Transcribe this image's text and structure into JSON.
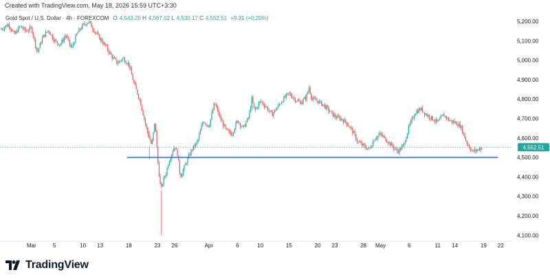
{
  "header": {
    "created_text": "Created with TradingView.com, May 18, 2026 15:59 UTC+3:30"
  },
  "legend": {
    "symbol": "Gold Spot / U.S. Dollar · 4h · FOREXCOM",
    "open_label": "O",
    "open": "4,543.20",
    "high_label": "H",
    "high": "4,567.02",
    "low_label": "L",
    "low": "4,530.17",
    "close_label": "C",
    "close": "4,552.51",
    "change": "+9.31 (+0.20%)"
  },
  "brand": {
    "name": "TradingView"
  },
  "colors": {
    "up": "#26a69a",
    "down": "#ef5350",
    "support_line": "#2962ff",
    "price_tag": "#26a69a"
  },
  "chart_data": {
    "type": "candlestick",
    "symbol": "XAUUSD",
    "timeframe": "4h",
    "current_price": 4552.51,
    "current_price_label": "4,552.51",
    "support_level": 4500,
    "y_ticks": [
      {
        "value": 4100,
        "label": "4,100.00"
      },
      {
        "value": 4200,
        "label": "4,200.00"
      },
      {
        "value": 4300,
        "label": "4,300.00"
      },
      {
        "value": 4400,
        "label": "4,400.00"
      },
      {
        "value": 4500,
        "label": "4,500.00"
      },
      {
        "value": 4600,
        "label": "4,600.00"
      },
      {
        "value": 4700,
        "label": "4,700.00"
      },
      {
        "value": 4800,
        "label": "4,800.00"
      },
      {
        "value": 4900,
        "label": "4,900.00"
      },
      {
        "value": 5000,
        "label": "5,000.00"
      },
      {
        "value": 5100,
        "label": "5,100.00"
      },
      {
        "value": 5200,
        "label": "5,200.00"
      }
    ],
    "ylim": [
      4080,
      5260
    ],
    "x_ticks": [
      {
        "day": 0,
        "label": "Mar"
      },
      {
        "day": 4,
        "label": "5"
      },
      {
        "day": 9,
        "label": "10"
      },
      {
        "day": 12,
        "label": "13"
      },
      {
        "day": 17,
        "label": "18"
      },
      {
        "day": 22,
        "label": "23"
      },
      {
        "day": 25,
        "label": "26"
      },
      {
        "day": 31,
        "label": "Apr"
      },
      {
        "day": 36,
        "label": "6"
      },
      {
        "day": 40,
        "label": "10"
      },
      {
        "day": 45,
        "label": "15"
      },
      {
        "day": 50,
        "label": "20"
      },
      {
        "day": 53,
        "label": "23"
      },
      {
        "day": 58,
        "label": "28"
      },
      {
        "day": 61,
        "label": "May"
      },
      {
        "day": 66,
        "label": "6"
      },
      {
        "day": 71,
        "label": "11"
      },
      {
        "day": 74,
        "label": "14"
      },
      {
        "day": 79,
        "label": "19"
      },
      {
        "day": 82,
        "label": "22"
      }
    ],
    "xlim": [
      -5.5,
      84
    ],
    "path": [
      [
        -5.3,
        5160
      ],
      [
        -4,
        5185
      ],
      [
        -3,
        5130
      ],
      [
        -2,
        5175
      ],
      [
        -1,
        5150
      ],
      [
        0,
        5165
      ],
      [
        1,
        5040
      ],
      [
        2,
        5120
      ],
      [
        3,
        5155
      ],
      [
        4,
        5100
      ],
      [
        5,
        5080
      ],
      [
        6,
        5130
      ],
      [
        7,
        5060
      ],
      [
        8,
        5140
      ],
      [
        9,
        5180
      ],
      [
        10,
        5200
      ],
      [
        11,
        5150
      ],
      [
        12,
        5110
      ],
      [
        13,
        5070
      ],
      [
        14,
        5020
      ],
      [
        15,
        4985
      ],
      [
        16,
        5010
      ],
      [
        17,
        4980
      ],
      [
        18,
        4870
      ],
      [
        19,
        4790
      ],
      [
        20,
        4660
      ],
      [
        21,
        4560
      ],
      [
        21.6,
        4690
      ],
      [
        22,
        4500
      ],
      [
        22.6,
        4330
      ],
      [
        23,
        4380
      ],
      [
        23.5,
        4420
      ],
      [
        24,
        4480
      ],
      [
        25,
        4560
      ],
      [
        25.5,
        4520
      ],
      [
        26,
        4400
      ],
      [
        27,
        4470
      ],
      [
        28,
        4540
      ],
      [
        29,
        4580
      ],
      [
        30,
        4690
      ],
      [
        31,
        4660
      ],
      [
        32,
        4780
      ],
      [
        33,
        4700
      ],
      [
        34,
        4640
      ],
      [
        35,
        4620
      ],
      [
        36,
        4690
      ],
      [
        37,
        4650
      ],
      [
        38,
        4710
      ],
      [
        38.5,
        4800
      ],
      [
        39,
        4740
      ],
      [
        40,
        4790
      ],
      [
        41,
        4760
      ],
      [
        42,
        4720
      ],
      [
        43,
        4760
      ],
      [
        44,
        4800
      ],
      [
        45,
        4830
      ],
      [
        46,
        4800
      ],
      [
        47,
        4780
      ],
      [
        48,
        4810
      ],
      [
        48.5,
        4860
      ],
      [
        49,
        4800
      ],
      [
        50,
        4790
      ],
      [
        51,
        4770
      ],
      [
        52,
        4740
      ],
      [
        53,
        4710
      ],
      [
        54,
        4700
      ],
      [
        55,
        4680
      ],
      [
        56,
        4640
      ],
      [
        57,
        4580
      ],
      [
        58,
        4560
      ],
      [
        59,
        4540
      ],
      [
        60,
        4600
      ],
      [
        61,
        4620
      ],
      [
        62,
        4590
      ],
      [
        63,
        4560
      ],
      [
        64,
        4530
      ],
      [
        65,
        4560
      ],
      [
        66,
        4660
      ],
      [
        67,
        4730
      ],
      [
        68,
        4750
      ],
      [
        69,
        4720
      ],
      [
        70,
        4700
      ],
      [
        71,
        4680
      ],
      [
        72,
        4720
      ],
      [
        73,
        4690
      ],
      [
        74,
        4680
      ],
      [
        75,
        4660
      ],
      [
        76,
        4580
      ],
      [
        77,
        4530
      ],
      [
        78,
        4540
      ],
      [
        78.8,
        4552
      ]
    ]
  }
}
